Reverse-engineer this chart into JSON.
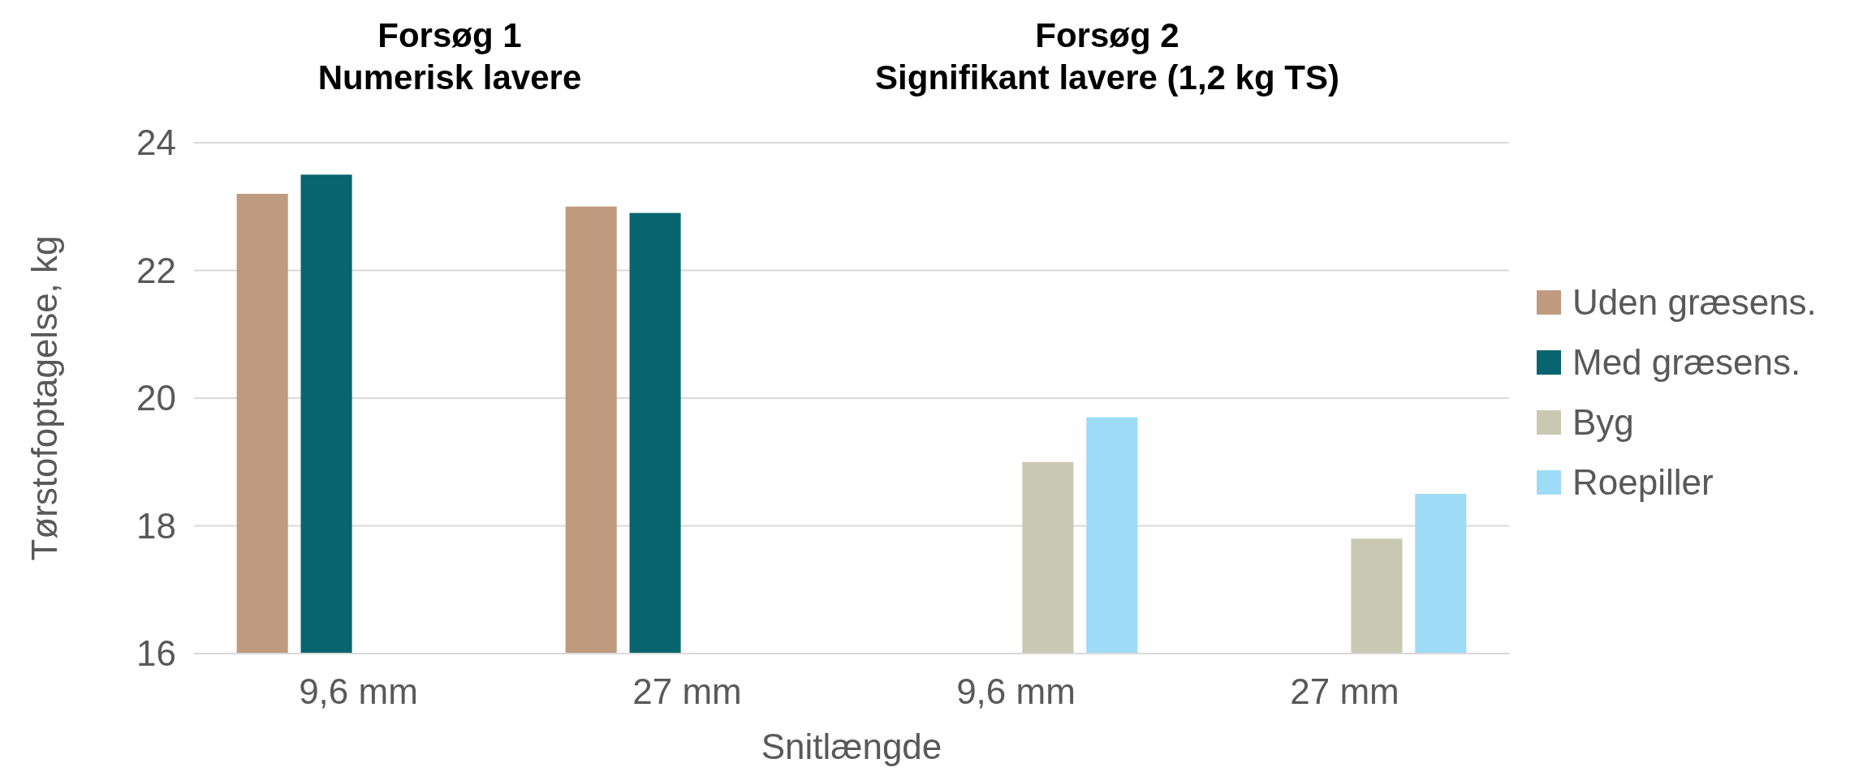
{
  "chart_data": {
    "type": "bar",
    "xlabel": "Snitlængde",
    "ylabel": "Tørstofoptagelse, kg",
    "categories": [
      "9,6 mm",
      "27 mm",
      "9,6 mm",
      "27 mm"
    ],
    "series": [
      {
        "name": "Uden græsens.",
        "color": "#c09a7e",
        "values": [
          23.2,
          23.0,
          null,
          null
        ]
      },
      {
        "name": "Med græsens.",
        "color": "#08646f",
        "values": [
          23.5,
          22.9,
          null,
          null
        ]
      },
      {
        "name": "Byg",
        "color": "#c9c8b3",
        "values": [
          null,
          null,
          19.0,
          17.8
        ]
      },
      {
        "name": "Roepiller",
        "color": "#9ddbf6",
        "values": [
          null,
          null,
          19.7,
          18.5
        ]
      }
    ],
    "ylim": [
      16,
      24
    ],
    "yticks": [
      16,
      18,
      20,
      22,
      24
    ],
    "grid": "y",
    "legend": "right",
    "annotations": [
      "Forsøg 1\nNumerisk lavere",
      "Forsøg 2\nSignifikant lavere (1,2 kg TS)"
    ]
  }
}
